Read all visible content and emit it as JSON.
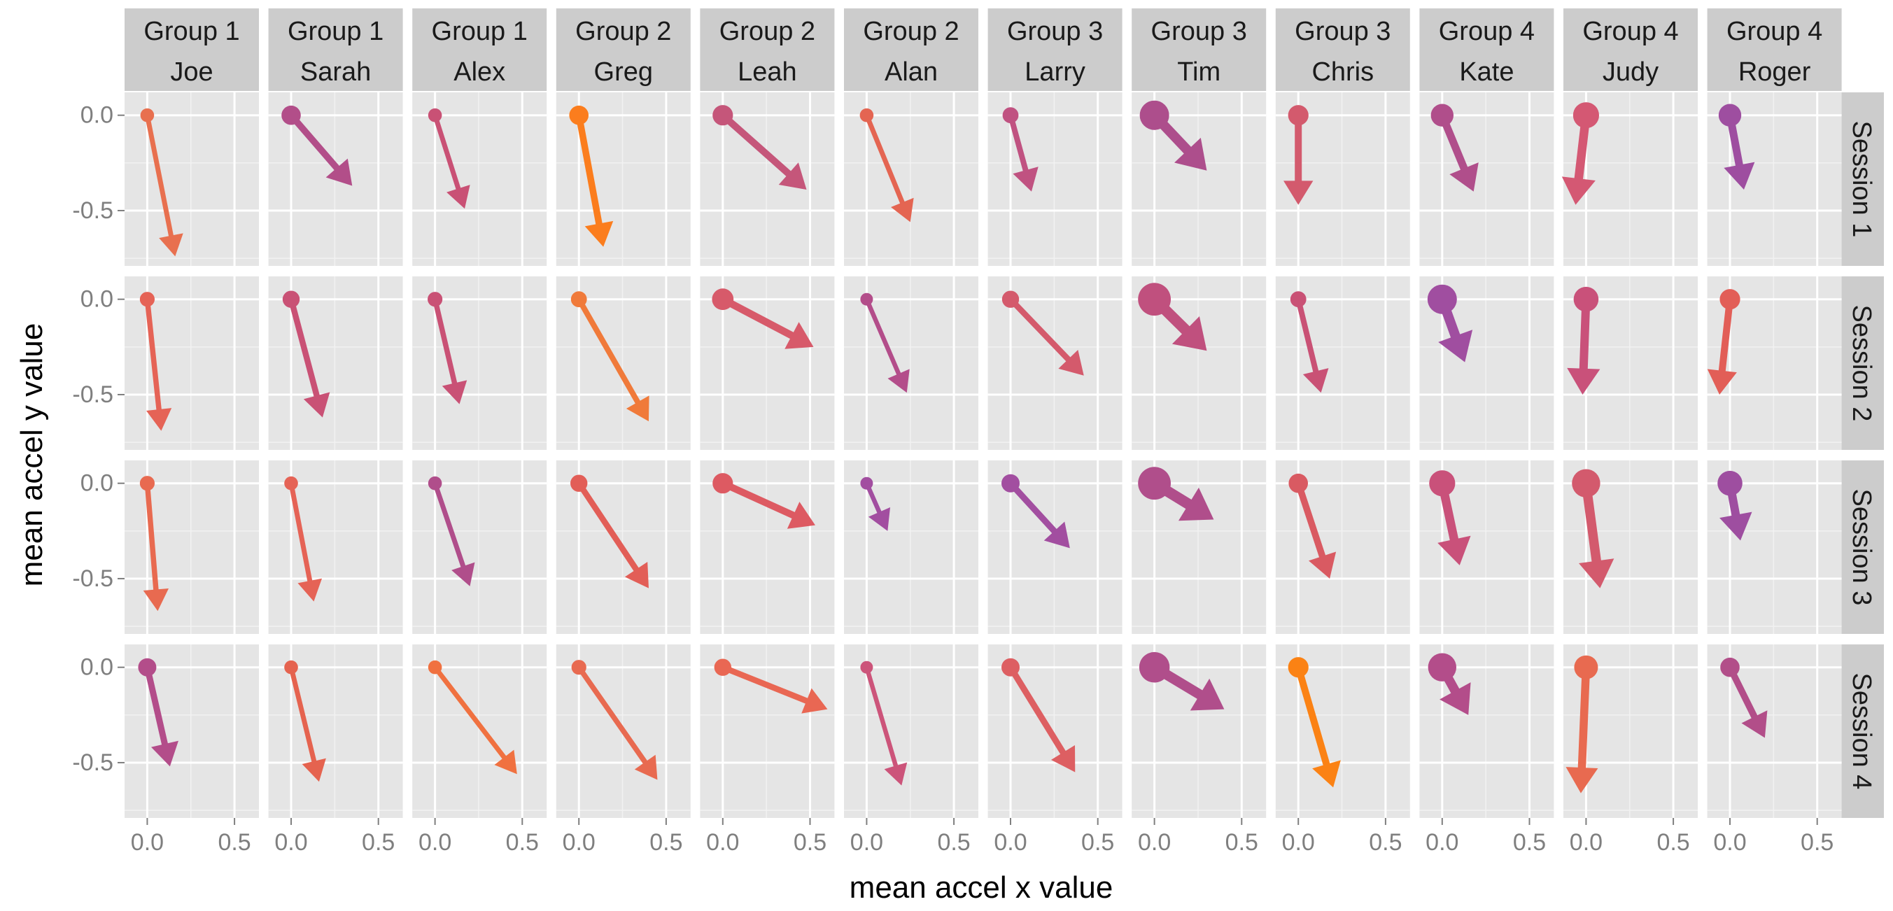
{
  "chart_data": {
    "type": "scatter",
    "subtype": "faceted-arrow-plot",
    "title": "",
    "xlabel": "mean accel x value",
    "ylabel": "mean accel y value",
    "xlim": [
      -0.13,
      0.64
    ],
    "ylim": [
      -0.79,
      0.12
    ],
    "x_ticks": [
      0.0,
      0.5
    ],
    "y_ticks": [
      0.0,
      -0.5
    ],
    "x_tick_labels": [
      "0.0",
      "0.5"
    ],
    "y_tick_labels": [
      "0.0",
      "-0.5"
    ],
    "grid": true,
    "legend": "none",
    "columns": [
      {
        "group": "Group 1",
        "name": "Joe"
      },
      {
        "group": "Group 1",
        "name": "Sarah"
      },
      {
        "group": "Group 1",
        "name": "Alex"
      },
      {
        "group": "Group 2",
        "name": "Greg"
      },
      {
        "group": "Group 2",
        "name": "Leah"
      },
      {
        "group": "Group 2",
        "name": "Alan"
      },
      {
        "group": "Group 3",
        "name": "Larry"
      },
      {
        "group": "Group 3",
        "name": "Tim"
      },
      {
        "group": "Group 3",
        "name": "Chris"
      },
      {
        "group": "Group 4",
        "name": "Kate"
      },
      {
        "group": "Group 4",
        "name": "Judy"
      },
      {
        "group": "Group 4",
        "name": "Roger"
      }
    ],
    "rows": [
      "Session 1",
      "Session 2",
      "Session 3",
      "Session 4"
    ],
    "arrows": [
      [
        {
          "x": 0.16,
          "y": -0.74,
          "size": 0.3,
          "color": "#e8704f"
        },
        {
          "x": 0.35,
          "y": -0.37,
          "size": 0.55,
          "color": "#b24e89"
        },
        {
          "x": 0.17,
          "y": -0.49,
          "size": 0.3,
          "color": "#c95175"
        },
        {
          "x": 0.14,
          "y": -0.69,
          "size": 0.55,
          "color": "#fb7d1d"
        },
        {
          "x": 0.48,
          "y": -0.39,
          "size": 0.6,
          "color": "#c5567a"
        },
        {
          "x": 0.25,
          "y": -0.56,
          "size": 0.3,
          "color": "#e46552"
        },
        {
          "x": 0.12,
          "y": -0.4,
          "size": 0.4,
          "color": "#c05281"
        },
        {
          "x": 0.3,
          "y": -0.29,
          "size": 1.0,
          "color": "#ad4e8c"
        },
        {
          "x": 0.0,
          "y": -0.47,
          "size": 0.6,
          "color": "#d35a6d"
        },
        {
          "x": 0.18,
          "y": -0.4,
          "size": 0.7,
          "color": "#b04e8b"
        },
        {
          "x": -0.06,
          "y": -0.47,
          "size": 0.85,
          "color": "#d45873"
        },
        {
          "x": 0.08,
          "y": -0.39,
          "size": 0.7,
          "color": "#9e4ea0"
        }
      ],
      [
        {
          "x": 0.08,
          "y": -0.69,
          "size": 0.35,
          "color": "#e56356"
        },
        {
          "x": 0.18,
          "y": -0.62,
          "size": 0.45,
          "color": "#c95175"
        },
        {
          "x": 0.14,
          "y": -0.55,
          "size": 0.35,
          "color": "#c95175"
        },
        {
          "x": 0.4,
          "y": -0.64,
          "size": 0.4,
          "color": "#f07a3a"
        },
        {
          "x": 0.52,
          "y": -0.25,
          "size": 0.65,
          "color": "#d75a6a"
        },
        {
          "x": 0.23,
          "y": -0.49,
          "size": 0.25,
          "color": "#b34d8a"
        },
        {
          "x": 0.42,
          "y": -0.4,
          "size": 0.45,
          "color": "#d45a6c"
        },
        {
          "x": 0.3,
          "y": -0.27,
          "size": 1.15,
          "color": "#c0507e"
        },
        {
          "x": 0.13,
          "y": -0.49,
          "size": 0.4,
          "color": "#c95175"
        },
        {
          "x": 0.13,
          "y": -0.33,
          "size": 1.0,
          "color": "#a04ea0"
        },
        {
          "x": -0.02,
          "y": -0.5,
          "size": 0.8,
          "color": "#c9517a"
        },
        {
          "x": -0.06,
          "y": -0.5,
          "size": 0.6,
          "color": "#e25e57"
        }
      ],
      [
        {
          "x": 0.06,
          "y": -0.67,
          "size": 0.35,
          "color": "#e86a50"
        },
        {
          "x": 0.13,
          "y": -0.62,
          "size": 0.3,
          "color": "#e56356"
        },
        {
          "x": 0.2,
          "y": -0.54,
          "size": 0.3,
          "color": "#b04e8b"
        },
        {
          "x": 0.4,
          "y": -0.55,
          "size": 0.45,
          "color": "#e25e57"
        },
        {
          "x": 0.53,
          "y": -0.22,
          "size": 0.6,
          "color": "#dd5a62"
        },
        {
          "x": 0.12,
          "y": -0.25,
          "size": 0.25,
          "color": "#a24ea0"
        },
        {
          "x": 0.34,
          "y": -0.34,
          "size": 0.5,
          "color": "#a24ea0"
        },
        {
          "x": 0.34,
          "y": -0.19,
          "size": 1.15,
          "color": "#b04e8b"
        },
        {
          "x": 0.18,
          "y": -0.5,
          "size": 0.55,
          "color": "#d95a62"
        },
        {
          "x": 0.1,
          "y": -0.43,
          "size": 0.85,
          "color": "#c9517a"
        },
        {
          "x": 0.08,
          "y": -0.55,
          "size": 0.95,
          "color": "#d35a6d"
        },
        {
          "x": 0.06,
          "y": -0.3,
          "size": 0.8,
          "color": "#9e4ea0"
        }
      ],
      [
        {
          "x": 0.13,
          "y": -0.52,
          "size": 0.5,
          "color": "#b34d8a"
        },
        {
          "x": 0.16,
          "y": -0.6,
          "size": 0.3,
          "color": "#e5634f"
        },
        {
          "x": 0.47,
          "y": -0.56,
          "size": 0.3,
          "color": "#f07140"
        },
        {
          "x": 0.45,
          "y": -0.59,
          "size": 0.35,
          "color": "#e86a50"
        },
        {
          "x": 0.6,
          "y": -0.22,
          "size": 0.45,
          "color": "#e96753"
        },
        {
          "x": 0.2,
          "y": -0.62,
          "size": 0.25,
          "color": "#cc547a"
        },
        {
          "x": 0.37,
          "y": -0.55,
          "size": 0.5,
          "color": "#dd5f62"
        },
        {
          "x": 0.4,
          "y": -0.22,
          "size": 1.05,
          "color": "#b04e8b"
        },
        {
          "x": 0.2,
          "y": -0.63,
          "size": 0.6,
          "color": "#fb8214"
        },
        {
          "x": 0.15,
          "y": -0.25,
          "size": 0.95,
          "color": "#b34d8a"
        },
        {
          "x": -0.03,
          "y": -0.66,
          "size": 0.75,
          "color": "#e86a50"
        },
        {
          "x": 0.2,
          "y": -0.37,
          "size": 0.55,
          "color": "#b24e89"
        }
      ]
    ]
  }
}
